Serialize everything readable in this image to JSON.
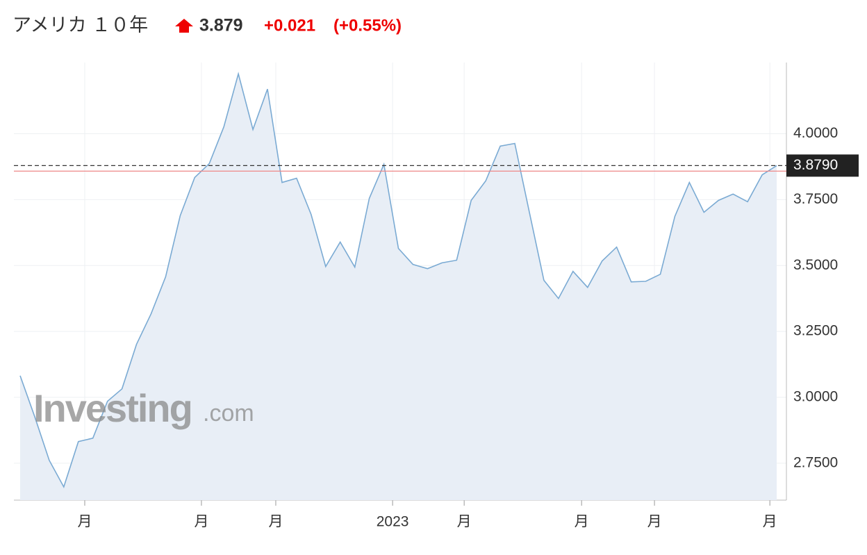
{
  "header": {
    "title": "アメリカ １０年",
    "price": "3.879",
    "change": "+0.021",
    "change_pct": "(+0.55%)"
  },
  "watermark": {
    "brand": "Investing",
    "suffix": ".com"
  },
  "chart_data": {
    "type": "area",
    "categories": [
      null,
      null,
      null,
      null,
      null,
      null,
      null,
      null,
      null,
      null,
      null,
      null,
      null,
      null,
      null,
      null,
      null,
      null,
      null,
      null,
      null,
      null,
      null,
      null,
      null,
      null,
      null,
      null,
      null,
      null,
      null,
      null,
      null,
      null,
      null,
      null,
      null,
      null,
      null,
      null,
      null,
      null,
      null,
      null,
      null,
      null,
      null,
      null,
      null,
      null,
      null,
      null,
      null
    ],
    "values": [
      3.082,
      2.927,
      2.761,
      2.66,
      2.832,
      2.845,
      2.985,
      3.032,
      3.201,
      3.317,
      3.457,
      3.689,
      3.834,
      3.887,
      4.026,
      4.227,
      4.016,
      4.169,
      3.815,
      3.831,
      3.694,
      3.496,
      3.589,
      3.494,
      3.755,
      3.884,
      3.565,
      3.504,
      3.488,
      3.51,
      3.52,
      3.747,
      3.821,
      3.953,
      3.963,
      3.702,
      3.444,
      3.375,
      3.478,
      3.417,
      3.517,
      3.57,
      3.438,
      3.44,
      3.467,
      3.686,
      3.815,
      3.702,
      3.747,
      3.771,
      3.742,
      3.844,
      3.879
    ],
    "color": "#7aaad3",
    "fill": "#e8eef6",
    "xticks": [
      {
        "value": 4.44,
        "label": "月"
      },
      {
        "value": 12.46,
        "label": "月"
      },
      {
        "value": 17.57,
        "label": "月"
      },
      {
        "value": 25.6,
        "label": "2023"
      },
      {
        "value": 30.52,
        "label": "月"
      },
      {
        "value": 38.59,
        "label": "月"
      },
      {
        "value": 43.6,
        "label": "月"
      },
      {
        "value": 51.53,
        "label": "月"
      }
    ],
    "ylim": [
      2.61,
      4.27
    ],
    "yticks": [
      {
        "value": 2.75,
        "label": "2.7500"
      },
      {
        "value": 3.0,
        "label": "3.0000"
      },
      {
        "value": 3.25,
        "label": "3.2500"
      },
      {
        "value": 3.5,
        "label": "3.5000"
      },
      {
        "value": 3.75,
        "label": "3.7500"
      },
      {
        "value": 4.0,
        "label": "4.0000"
      }
    ],
    "grid": true,
    "current_value": 3.879,
    "current_label": "3.8790",
    "prev_close": 3.858
  }
}
